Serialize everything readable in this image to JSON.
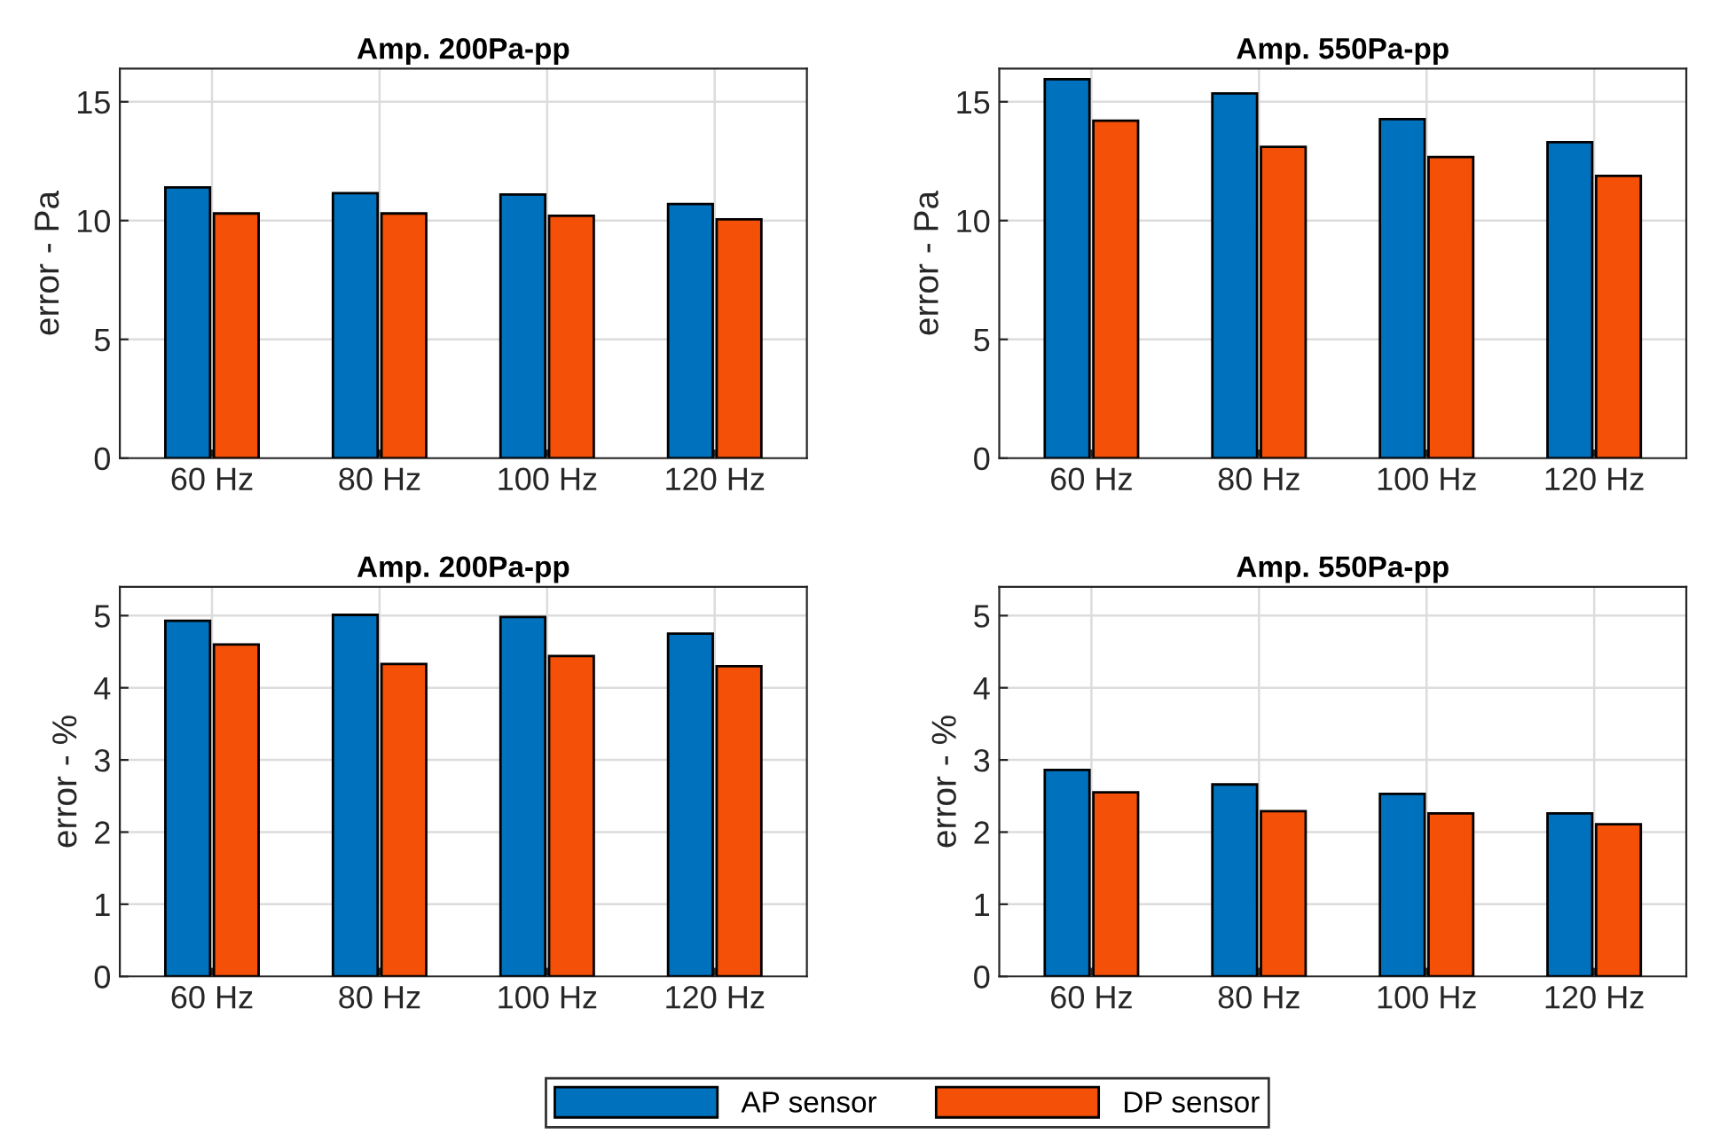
{
  "chart_data": [
    {
      "type": "bar",
      "title": "Amp. 200Pa-pp",
      "ylabel": "error - Pa",
      "categories": [
        "60 Hz",
        "80 Hz",
        "100 Hz",
        "120 Hz"
      ],
      "ylim": [
        0,
        16.4
      ],
      "yticks": [
        0,
        5,
        10,
        15
      ],
      "grid": true,
      "series": [
        {
          "color": "#0072bd",
          "values": [
            11.4,
            11.15,
            11.1,
            10.7
          ]
        },
        {
          "color": "#f55008",
          "values": [
            10.3,
            10.3,
            10.2,
            10.05
          ]
        }
      ]
    },
    {
      "type": "bar",
      "title": "Amp. 550Pa-pp",
      "ylabel": "error - Pa",
      "categories": [
        "60 Hz",
        "80 Hz",
        "100 Hz",
        "120 Hz"
      ],
      "ylim": [
        0,
        16.4
      ],
      "yticks": [
        0,
        5,
        10,
        15
      ],
      "grid": true,
      "series": [
        {
          "color": "#0072bd",
          "values": [
            15.95,
            15.35,
            14.27,
            13.3
          ]
        },
        {
          "color": "#f55008",
          "values": [
            14.2,
            13.1,
            12.67,
            11.88
          ]
        }
      ]
    },
    {
      "type": "bar",
      "title": "Amp. 200Pa-pp",
      "ylabel": "error - %",
      "categories": [
        "60 Hz",
        "80 Hz",
        "100 Hz",
        "120 Hz"
      ],
      "ylim": [
        0,
        5.4
      ],
      "yticks": [
        0,
        1,
        2,
        3,
        4,
        5
      ],
      "grid": true,
      "legend": "bottom",
      "series": [
        {
          "name": "AP sensor",
          "color": "#0072bd",
          "values": [
            4.93,
            5.01,
            4.98,
            4.75
          ]
        },
        {
          "name": "DP sensor",
          "color": "#f55008",
          "values": [
            4.6,
            4.33,
            4.44,
            4.3
          ]
        }
      ]
    },
    {
      "type": "bar",
      "title": "Amp. 550Pa-pp",
      "ylabel": "error - %",
      "categories": [
        "60 Hz",
        "80 Hz",
        "100 Hz",
        "120 Hz"
      ],
      "ylim": [
        0,
        5.4
      ],
      "yticks": [
        0,
        1,
        2,
        3,
        4,
        5
      ],
      "grid": true,
      "series": [
        {
          "color": "#0072bd",
          "values": [
            2.86,
            2.66,
            2.53,
            2.26
          ]
        },
        {
          "color": "#f55008",
          "values": [
            2.55,
            2.29,
            2.26,
            2.11
          ]
        }
      ]
    }
  ]
}
